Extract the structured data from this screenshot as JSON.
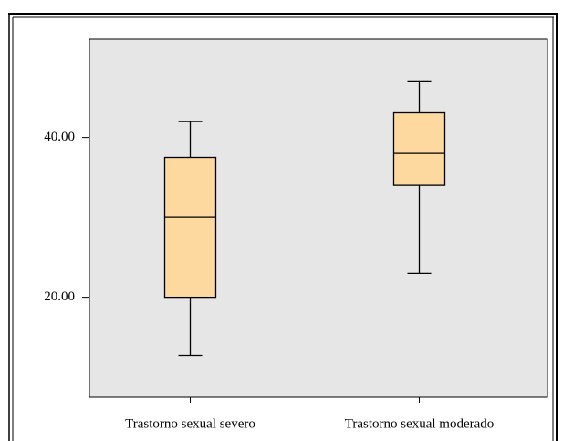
{
  "chart_data": {
    "type": "box",
    "categories": [
      "Trastorno sexual severo",
      "Trastorno sexual moderado"
    ],
    "min": [
      12.7,
      23
    ],
    "q1": [
      20,
      34
    ],
    "median": [
      30,
      38
    ],
    "q3": [
      37.5,
      43.1
    ],
    "max": [
      42,
      47
    ],
    "color": "#fdd9a0",
    "ylim": [
      7.5,
      52.3
    ],
    "yticks": [
      {
        "value": 20,
        "label": "20.00"
      },
      {
        "value": 40,
        "label": "40.00"
      }
    ],
    "grid": false
  }
}
